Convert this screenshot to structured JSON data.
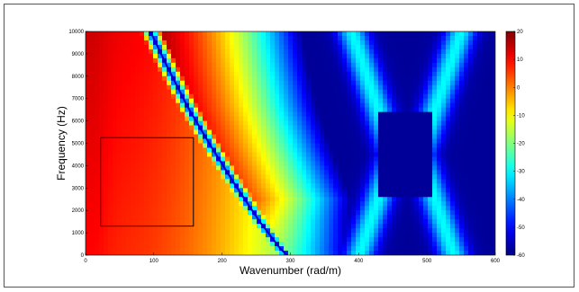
{
  "chart_data": {
    "type": "heatmap",
    "title": "",
    "xlabel": "Wavenumber (rad/m)",
    "ylabel": "Frequency (Hz)",
    "xlim": [
      0,
      600
    ],
    "ylim": [
      0,
      10000
    ],
    "x_ticks": [
      {
        "value": 0,
        "label": "0"
      },
      {
        "value": 100,
        "label": "100"
      },
      {
        "value": 200,
        "label": "200"
      },
      {
        "value": 300,
        "label": "300"
      },
      {
        "value": 400,
        "label": "400"
      },
      {
        "value": 500,
        "label": "500"
      },
      {
        "value": 600,
        "label": "600"
      }
    ],
    "y_ticks": [
      {
        "value": 0,
        "label": "0"
      },
      {
        "value": 1000,
        "label": "1000"
      },
      {
        "value": 2000,
        "label": "2000"
      },
      {
        "value": 3000,
        "label": "3000"
      },
      {
        "value": 4000,
        "label": "4000"
      },
      {
        "value": 5000,
        "label": "5000"
      },
      {
        "value": 6000,
        "label": "6000"
      },
      {
        "value": 7000,
        "label": "7000"
      },
      {
        "value": 8000,
        "label": "8000"
      },
      {
        "value": 9000,
        "label": "9000"
      },
      {
        "value": 10000,
        "label": "10000"
      }
    ],
    "colorbar": {
      "colormap": "jet",
      "range": [
        -60,
        20
      ],
      "ticks": [
        {
          "value": 20,
          "label": "20"
        },
        {
          "value": 10,
          "label": "10"
        },
        {
          "value": 0,
          "label": "0"
        },
        {
          "value": -10,
          "label": "-10"
        },
        {
          "value": -20,
          "label": "-20"
        },
        {
          "value": -30,
          "label": "-30"
        },
        {
          "value": -40,
          "label": "-40"
        },
        {
          "value": -50,
          "label": "-50"
        },
        {
          "value": -60,
          "label": "-60"
        }
      ]
    },
    "dispersion_curve": {
      "color": "#0000c8",
      "points": [
        [
          95,
          10000
        ],
        [
          120,
          8400
        ],
        [
          150,
          6600
        ],
        [
          185,
          4800
        ],
        [
          220,
          3100
        ],
        [
          255,
          1500
        ],
        [
          285,
          300
        ],
        [
          295,
          0
        ]
      ]
    },
    "annotation_box": {
      "x_range": [
        22,
        158
      ],
      "y_range": [
        1300,
        5250
      ],
      "color": "#000000"
    },
    "grid": false,
    "legend": "none"
  }
}
